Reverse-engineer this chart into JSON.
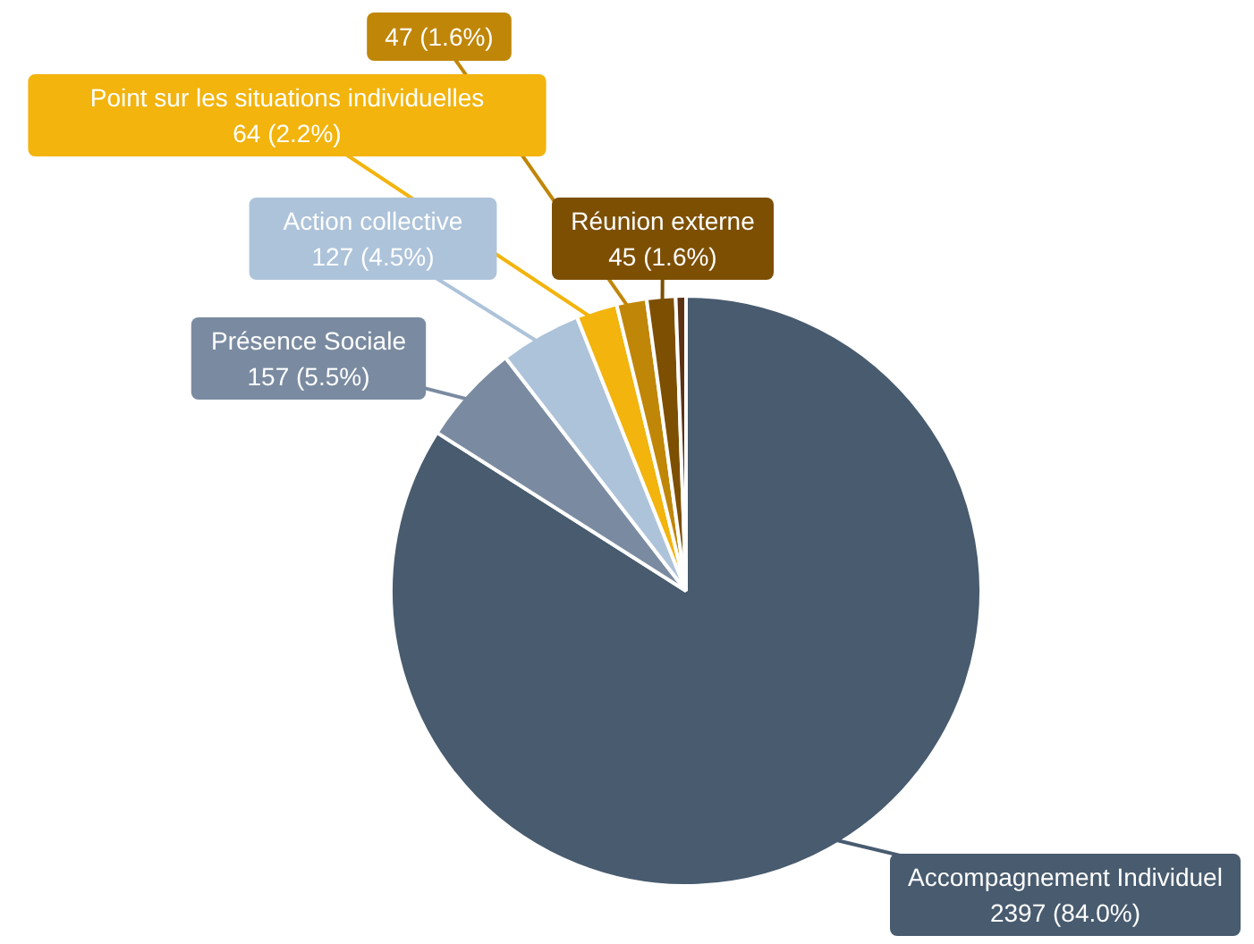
{
  "chart_data": {
    "type": "pie",
    "categories": [
      "Accompagnement Individuel",
      "Présence Sociale",
      "Action collective",
      "Point sur les situations individuelles",
      null,
      "Réunion externe",
      null
    ],
    "values": [
      2397,
      157,
      127,
      64,
      47,
      45,
      16
    ],
    "colors": [
      "#485b6f",
      "#7a8ba1",
      "#adc3da",
      "#f2b40d",
      "#c08608",
      "#7d4f02",
      "#5c3212"
    ],
    "value_labels": [
      "2397 (84.0%)",
      "157 (5.5%)",
      "127 (4.5%)",
      "64 (2.2%)",
      "47 (1.6%)",
      "45 (1.6%)",
      null
    ]
  }
}
